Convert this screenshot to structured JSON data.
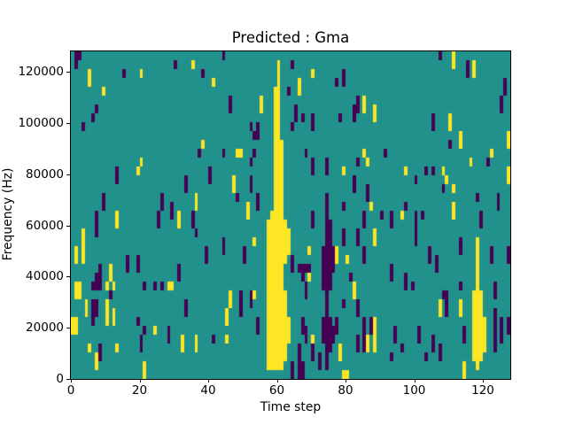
{
  "title": "Predicted : Gma",
  "x_axis": {
    "label": "Time step",
    "ticks": [
      0,
      20,
      40,
      60,
      80,
      100,
      120
    ],
    "range": [
      0,
      128
    ]
  },
  "y_axis": {
    "label": "Frequency (Hz)",
    "ticks": [
      0,
      20000,
      40000,
      60000,
      80000,
      100000,
      120000
    ],
    "range": [
      0,
      128000
    ]
  },
  "chart_data": {
    "type": "heatmap",
    "title": "Predicted : Gma",
    "xlabel": "Time step",
    "ylabel": "Frequency (Hz)",
    "x_range": [
      0,
      128
    ],
    "y_range_hz": [
      0,
      128000
    ],
    "colormap": "viridis",
    "classes": {
      "background_mid": "#21918c",
      "y": "#fde725",
      "p": "#440154"
    },
    "grid": {
      "cols": 128,
      "rows": 37
    },
    "legend": "none",
    "features": [
      "solid yellow vertical band at time ~57-63 spanning ~0-110000 Hz, widest at low frequencies",
      "dark purple vertical band at time ~73-76 spanning ~5000-75000 Hz",
      "yellow vertical band at time ~117-120 spanning ~5000-40000 Hz",
      "sparse scattered yellow/purple cells over teal background, denser in lower half"
    ],
    "cells": [
      [
        57,
        19,
        17,
        "y"
      ],
      [
        58,
        18,
        18,
        "y"
      ],
      [
        59,
        4,
        32,
        "y"
      ],
      [
        60,
        1,
        35,
        "y"
      ],
      [
        61,
        10,
        26,
        "y"
      ],
      [
        62,
        19,
        5,
        "y"
      ],
      [
        62,
        27,
        8,
        "y"
      ],
      [
        63,
        20,
        3,
        "y"
      ],
      [
        63,
        30,
        3,
        "y"
      ],
      [
        73,
        22,
        5,
        "p"
      ],
      [
        73,
        30,
        3,
        "p"
      ],
      [
        74,
        16,
        20,
        "p"
      ],
      [
        75,
        19,
        8,
        "p"
      ],
      [
        75,
        30,
        4,
        "p"
      ],
      [
        76,
        22,
        3,
        "p"
      ],
      [
        76,
        31,
        2,
        "p"
      ],
      [
        117,
        27,
        8,
        "y"
      ],
      [
        118,
        21,
        15,
        "y"
      ],
      [
        119,
        27,
        8,
        "y"
      ],
      [
        120,
        30,
        4,
        "y"
      ],
      [
        1,
        0,
        2,
        "p"
      ],
      [
        2,
        0,
        1,
        "p"
      ],
      [
        44,
        0,
        1,
        "p"
      ],
      [
        107,
        0,
        1,
        "p"
      ],
      [
        111,
        0,
        2,
        "y"
      ],
      [
        30,
        1,
        1,
        "p"
      ],
      [
        35,
        1,
        1,
        "y"
      ],
      [
        64,
        1,
        1,
        "p"
      ],
      [
        115,
        1,
        2,
        "p"
      ],
      [
        117,
        1,
        2,
        "y"
      ],
      [
        5,
        2,
        2,
        "y"
      ],
      [
        15,
        2,
        1,
        "p"
      ],
      [
        20,
        2,
        1,
        "y"
      ],
      [
        38,
        2,
        1,
        "p"
      ],
      [
        70,
        2,
        1,
        "y"
      ],
      [
        79,
        2,
        2,
        "p"
      ],
      [
        41,
        3,
        1,
        "y"
      ],
      [
        66,
        3,
        2,
        "y"
      ],
      [
        77,
        3,
        1,
        "p"
      ],
      [
        126,
        3,
        2,
        "p"
      ],
      [
        9,
        4,
        1,
        "y"
      ],
      [
        63,
        4,
        1,
        "p"
      ],
      [
        46,
        5,
        2,
        "p"
      ],
      [
        55,
        5,
        2,
        "y"
      ],
      [
        83,
        5,
        2,
        "p"
      ],
      [
        85,
        5,
        2,
        "y"
      ],
      [
        125,
        5,
        2,
        "p"
      ],
      [
        7,
        6,
        1,
        "p"
      ],
      [
        65,
        6,
        2,
        "p"
      ],
      [
        82,
        6,
        2,
        "p"
      ],
      [
        88,
        6,
        2,
        "y"
      ],
      [
        6,
        7,
        1,
        "p"
      ],
      [
        67,
        7,
        1,
        "p"
      ],
      [
        70,
        7,
        2,
        "p"
      ],
      [
        78,
        7,
        1,
        "p"
      ],
      [
        105,
        7,
        2,
        "p"
      ],
      [
        110,
        7,
        2,
        "y"
      ],
      [
        3,
        8,
        1,
        "p"
      ],
      [
        52,
        8,
        1,
        "p"
      ],
      [
        54,
        8,
        2,
        "p"
      ],
      [
        64,
        8,
        1,
        "p"
      ],
      [
        53,
        9,
        1,
        "p"
      ],
      [
        113,
        9,
        2,
        "y"
      ],
      [
        127,
        9,
        2,
        "y"
      ],
      [
        38,
        10,
        1,
        "y"
      ],
      [
        110,
        10,
        1,
        "p"
      ],
      [
        37,
        11,
        1,
        "p"
      ],
      [
        44,
        11,
        1,
        "p"
      ],
      [
        48,
        11,
        1,
        "y"
      ],
      [
        49,
        11,
        1,
        "y"
      ],
      [
        53,
        11,
        1,
        "p"
      ],
      [
        68,
        11,
        1,
        "p"
      ],
      [
        85,
        11,
        1,
        "y"
      ],
      [
        91,
        11,
        1,
        "p"
      ],
      [
        122,
        11,
        1,
        "y"
      ],
      [
        20,
        12,
        1,
        "y"
      ],
      [
        52,
        12,
        1,
        "p"
      ],
      [
        70,
        12,
        2,
        "p"
      ],
      [
        74,
        12,
        2,
        "p"
      ],
      [
        83,
        12,
        1,
        "p"
      ],
      [
        86,
        12,
        1,
        "y"
      ],
      [
        116,
        12,
        1,
        "y"
      ],
      [
        121,
        12,
        1,
        "p"
      ],
      [
        13,
        13,
        2,
        "p"
      ],
      [
        19,
        13,
        1,
        "y"
      ],
      [
        40,
        13,
        2,
        "p"
      ],
      [
        79,
        13,
        1,
        "y"
      ],
      [
        97,
        13,
        1,
        "y"
      ],
      [
        103,
        13,
        1,
        "p"
      ],
      [
        105,
        13,
        1,
        "p"
      ],
      [
        108,
        13,
        1,
        "y"
      ],
      [
        127,
        13,
        2,
        "y"
      ],
      [
        33,
        14,
        2,
        "p"
      ],
      [
        47,
        14,
        2,
        "y"
      ],
      [
        52,
        14,
        2,
        "p"
      ],
      [
        82,
        14,
        2,
        "p"
      ],
      [
        100,
        14,
        1,
        "p"
      ],
      [
        109,
        14,
        1,
        "y"
      ],
      [
        86,
        15,
        2,
        "p"
      ],
      [
        108,
        15,
        1,
        "p"
      ],
      [
        111,
        15,
        1,
        "y"
      ],
      [
        9,
        16,
        2,
        "p"
      ],
      [
        26,
        16,
        2,
        "p"
      ],
      [
        36,
        16,
        2,
        "y"
      ],
      [
        48,
        16,
        1,
        "p"
      ],
      [
        54,
        16,
        2,
        "p"
      ],
      [
        118,
        16,
        1,
        "p"
      ],
      [
        124,
        16,
        2,
        "p"
      ],
      [
        29,
        17,
        2,
        "p"
      ],
      [
        51,
        17,
        2,
        "y"
      ],
      [
        79,
        17,
        1,
        "p"
      ],
      [
        87,
        17,
        1,
        "y"
      ],
      [
        97,
        17,
        1,
        "p"
      ],
      [
        111,
        17,
        2,
        "y"
      ],
      [
        7,
        18,
        3,
        "p"
      ],
      [
        13,
        18,
        2,
        "y"
      ],
      [
        25,
        18,
        2,
        "p"
      ],
      [
        31,
        18,
        2,
        "y"
      ],
      [
        35,
        18,
        2,
        "p"
      ],
      [
        70,
        18,
        2,
        "p"
      ],
      [
        85,
        18,
        2,
        "p"
      ],
      [
        90,
        18,
        1,
        "p"
      ],
      [
        93,
        18,
        2,
        "p"
      ],
      [
        96,
        18,
        1,
        "y"
      ],
      [
        100,
        18,
        4,
        "p"
      ],
      [
        102,
        18,
        1,
        "p"
      ],
      [
        119,
        18,
        2,
        "p"
      ],
      [
        3,
        20,
        2,
        "y"
      ],
      [
        36,
        20,
        1,
        "p"
      ],
      [
        79,
        20,
        2,
        "p"
      ],
      [
        83,
        20,
        2,
        "p"
      ],
      [
        88,
        20,
        2,
        "y"
      ],
      [
        44,
        21,
        2,
        "p"
      ],
      [
        53,
        21,
        1,
        "y"
      ],
      [
        113,
        21,
        2,
        "p"
      ],
      [
        1,
        22,
        2,
        "y"
      ],
      [
        3,
        22,
        2,
        "y"
      ],
      [
        39,
        22,
        2,
        "p"
      ],
      [
        50,
        22,
        2,
        "p"
      ],
      [
        69,
        22,
        1,
        "y"
      ],
      [
        77,
        22,
        2,
        "y"
      ],
      [
        85,
        22,
        2,
        "p"
      ],
      [
        104,
        22,
        2,
        "p"
      ],
      [
        122,
        22,
        2,
        "p"
      ],
      [
        127,
        22,
        2,
        "p"
      ],
      [
        16,
        23,
        2,
        "p"
      ],
      [
        19,
        23,
        2,
        "p"
      ],
      [
        64,
        23,
        2,
        "p"
      ],
      [
        80,
        23,
        1,
        "y"
      ],
      [
        106,
        23,
        2,
        "p"
      ],
      [
        8,
        24,
        3,
        "p"
      ],
      [
        11,
        24,
        2,
        "y"
      ],
      [
        31,
        24,
        2,
        "p"
      ],
      [
        66,
        24,
        1,
        "p"
      ],
      [
        67,
        24,
        1,
        "p"
      ],
      [
        68,
        24,
        1,
        "p"
      ],
      [
        69,
        24,
        1,
        "p"
      ],
      [
        93,
        24,
        2,
        "p"
      ],
      [
        7,
        25,
        2,
        "p"
      ],
      [
        67,
        25,
        1,
        "p"
      ],
      [
        69,
        25,
        1,
        "y"
      ],
      [
        81,
        25,
        1,
        "p"
      ],
      [
        97,
        25,
        2,
        "p"
      ],
      [
        1,
        26,
        2,
        "y"
      ],
      [
        2,
        26,
        2,
        "y"
      ],
      [
        6,
        26,
        1,
        "p"
      ],
      [
        10,
        26,
        1,
        "y"
      ],
      [
        12,
        26,
        1,
        "y"
      ],
      [
        21,
        26,
        1,
        "p"
      ],
      [
        24,
        26,
        1,
        "p"
      ],
      [
        26,
        26,
        1,
        "p"
      ],
      [
        28,
        26,
        1,
        "y"
      ],
      [
        29,
        26,
        1,
        "y"
      ],
      [
        68,
        26,
        2,
        "p"
      ],
      [
        82,
        26,
        2,
        "y"
      ],
      [
        99,
        26,
        1,
        "p"
      ],
      [
        113,
        26,
        1,
        "p"
      ],
      [
        123,
        26,
        2,
        "p"
      ],
      [
        11,
        27,
        1,
        "p"
      ],
      [
        46,
        27,
        2,
        "y"
      ],
      [
        49,
        27,
        3,
        "p"
      ],
      [
        52,
        27,
        2,
        "p"
      ],
      [
        53,
        27,
        1,
        "y"
      ],
      [
        108,
        27,
        1,
        "p"
      ],
      [
        109,
        27,
        3,
        "p"
      ],
      [
        4,
        28,
        2,
        "y"
      ],
      [
        6,
        28,
        2,
        "p"
      ],
      [
        7,
        28,
        2,
        "p"
      ],
      [
        10,
        28,
        3,
        "y"
      ],
      [
        33,
        28,
        2,
        "p"
      ],
      [
        79,
        28,
        1,
        "p"
      ],
      [
        83,
        28,
        2,
        "p"
      ],
      [
        107,
        28,
        2,
        "y"
      ],
      [
        113,
        28,
        2,
        "y"
      ],
      [
        12,
        29,
        2,
        "y"
      ],
      [
        45,
        29,
        2,
        "y"
      ],
      [
        123,
        29,
        2,
        "p"
      ],
      [
        0,
        30,
        2,
        "y"
      ],
      [
        1,
        30,
        2,
        "y"
      ],
      [
        6,
        30,
        1,
        "p"
      ],
      [
        19,
        30,
        1,
        "p"
      ],
      [
        54,
        30,
        2,
        "p"
      ],
      [
        67,
        30,
        2,
        "p"
      ],
      [
        77,
        30,
        2,
        "p"
      ],
      [
        85,
        30,
        4,
        "p"
      ],
      [
        87,
        30,
        2,
        "p"
      ],
      [
        88,
        30,
        4,
        "y"
      ],
      [
        125,
        30,
        3,
        "p"
      ],
      [
        127,
        30,
        2,
        "p"
      ],
      [
        21,
        31,
        1,
        "p"
      ],
      [
        24,
        31,
        1,
        "y"
      ],
      [
        28,
        31,
        2,
        "p"
      ],
      [
        68,
        31,
        2,
        "p"
      ],
      [
        94,
        31,
        2,
        "p"
      ],
      [
        101,
        31,
        2,
        "p"
      ],
      [
        114,
        31,
        2,
        "p"
      ],
      [
        123,
        31,
        3,
        "p"
      ],
      [
        20,
        32,
        2,
        "p"
      ],
      [
        32,
        32,
        2,
        "y"
      ],
      [
        36,
        32,
        2,
        "y"
      ],
      [
        41,
        32,
        1,
        "p"
      ],
      [
        45,
        32,
        1,
        "y"
      ],
      [
        70,
        32,
        1,
        "y"
      ],
      [
        83,
        32,
        2,
        "p"
      ],
      [
        86,
        32,
        2,
        "y"
      ],
      [
        105,
        32,
        2,
        "p"
      ],
      [
        5,
        33,
        1,
        "y"
      ],
      [
        8,
        33,
        2,
        "p"
      ],
      [
        13,
        33,
        1,
        "y"
      ],
      [
        20,
        33,
        1,
        "p"
      ],
      [
        66,
        33,
        4,
        "p"
      ],
      [
        70,
        33,
        2,
        "p"
      ],
      [
        78,
        33,
        2,
        "y"
      ],
      [
        96,
        33,
        1,
        "p"
      ],
      [
        107,
        33,
        2,
        "p"
      ],
      [
        7,
        34,
        2,
        "y"
      ],
      [
        72,
        34,
        2,
        "p"
      ],
      [
        93,
        34,
        1,
        "p"
      ],
      [
        103,
        34,
        1,
        "p"
      ],
      [
        21,
        35,
        2,
        "y"
      ],
      [
        64,
        35,
        2,
        "p"
      ],
      [
        67,
        35,
        2,
        "p"
      ],
      [
        114,
        35,
        2,
        "y"
      ],
      [
        79,
        36,
        1,
        "y"
      ],
      [
        80,
        36,
        1,
        "y"
      ]
    ]
  }
}
